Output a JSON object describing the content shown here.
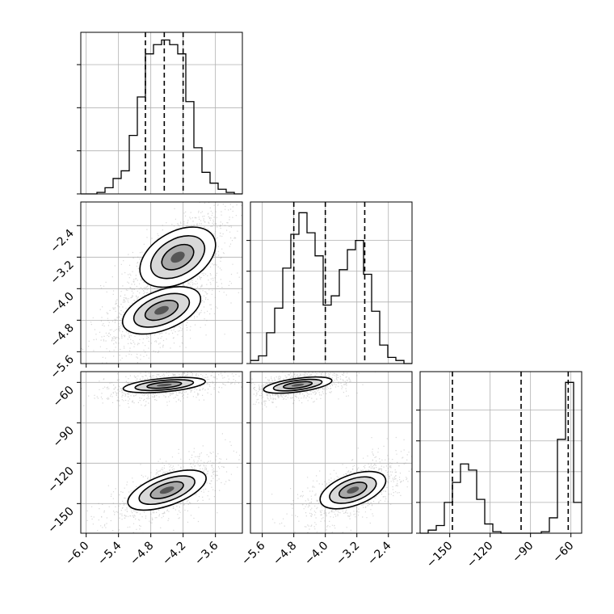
{
  "chart_data": {
    "type": "corner",
    "title": "",
    "parameters": [
      "",
      "",
      ""
    ],
    "axes": {
      "p0": {
        "range": [
          -6.1,
          -3.1
        ],
        "ticks": [
          -6.0,
          -5.4,
          -4.8,
          -4.2,
          -3.6
        ],
        "tick_labels": [
          "−6.0",
          "−5.4",
          "−4.8",
          "−4.2",
          "−3.6"
        ]
      },
      "p1": {
        "range": [
          -5.9,
          -1.8
        ],
        "ticks": [
          -5.6,
          -4.8,
          -4.0,
          -3.2,
          -2.4
        ],
        "tick_labels": [
          "−5.6",
          "−4.8",
          "−4.0",
          "−3.2",
          "−2.4"
        ]
      },
      "p2": {
        "range": [
          -172,
          -52
        ],
        "ticks": [
          -150,
          -120,
          -90,
          -60
        ],
        "tick_labels": [
          "−150",
          "−120",
          "−90",
          "−60"
        ]
      }
    },
    "grid": true,
    "diagonal": [
      {
        "param": "p0",
        "type": "histogram",
        "bins": [
          -6.1,
          -5.95,
          -5.8,
          -5.65,
          -5.5,
          -5.35,
          -5.2,
          -5.05,
          -4.9,
          -4.75,
          -4.6,
          -4.45,
          -4.3,
          -4.15,
          -4.0,
          -3.85,
          -3.7,
          -3.55,
          -3.4,
          -3.25,
          -3.1
        ],
        "counts": [
          0.0,
          0.0,
          0.01,
          0.04,
          0.1,
          0.15,
          0.38,
          0.63,
          0.91,
          0.97,
          1.0,
          0.97,
          0.91,
          0.6,
          0.3,
          0.14,
          0.07,
          0.03,
          0.01,
          0.0
        ],
        "quantiles": [
          -4.9,
          -4.55,
          -4.2
        ],
        "y_ticks": [
          0.0,
          0.28,
          0.56,
          0.84
        ]
      },
      {
        "param": "p1",
        "type": "histogram",
        "bins": [
          -5.9,
          -5.695,
          -5.49,
          -5.285,
          -5.08,
          -4.875,
          -4.67,
          -4.465,
          -4.26,
          -4.055,
          -3.85,
          -3.645,
          -3.44,
          -3.235,
          -3.03,
          -2.825,
          -2.62,
          -2.415,
          -2.21,
          -2.005,
          -1.8
        ],
        "counts": [
          0.02,
          0.05,
          0.2,
          0.36,
          0.62,
          0.84,
          0.98,
          0.85,
          0.7,
          0.38,
          0.44,
          0.61,
          0.74,
          0.8,
          0.58,
          0.34,
          0.12,
          0.04,
          0.02,
          0.0
        ],
        "quantiles": [
          -4.8,
          -4.0,
          -3.0
        ],
        "y_ticks": [
          0.0,
          0.2,
          0.4,
          0.6,
          0.8
        ]
      },
      {
        "param": "p2",
        "type": "histogram",
        "bins": [
          -172,
          -166,
          -160,
          -154,
          -148,
          -142,
          -136,
          -130,
          -124,
          -118,
          -112,
          -106,
          -100,
          -94,
          -88,
          -82,
          -76,
          -70,
          -64,
          -58,
          -52
        ],
        "counts": [
          0.0,
          0.02,
          0.05,
          0.2,
          0.33,
          0.45,
          0.41,
          0.22,
          0.06,
          0.01,
          0.0,
          0.0,
          0.0,
          0.0,
          0.0,
          0.01,
          0.1,
          0.61,
          0.98,
          0.2
        ],
        "quantiles": [
          -148,
          -97,
          -62
        ],
        "y_ticks": [
          0.0,
          0.2,
          0.4,
          0.6,
          0.8
        ]
      }
    ],
    "off_diagonal": [
      {
        "x_param": "p0",
        "y_param": "p1",
        "type": "2d-density",
        "modes": [
          {
            "center": [
              -4.3,
              -3.2
            ],
            "sd": [
              0.35,
              0.45
            ],
            "corr": 0.7
          },
          {
            "center": [
              -4.6,
              -4.55
            ],
            "sd": [
              0.35,
              0.35
            ],
            "corr": 0.6
          }
        ]
      },
      {
        "x_param": "p0",
        "y_param": "p2",
        "type": "2d-density",
        "modes": [
          {
            "center": [
              -4.55,
              -62
            ],
            "sd": [
              0.35,
              3.5
            ],
            "corr": 0.4
          },
          {
            "center": [
              -4.5,
              -140
            ],
            "sd": [
              0.35,
              8
            ],
            "corr": 0.7
          }
        ]
      },
      {
        "x_param": "p1",
        "y_param": "p2",
        "type": "2d-density",
        "modes": [
          {
            "center": [
              -4.7,
              -62
            ],
            "sd": [
              0.4,
              3.5
            ],
            "corr": 0.5
          },
          {
            "center": [
              -3.3,
              -140
            ],
            "sd": [
              0.4,
              8
            ],
            "corr": 0.6
          }
        ]
      }
    ]
  }
}
